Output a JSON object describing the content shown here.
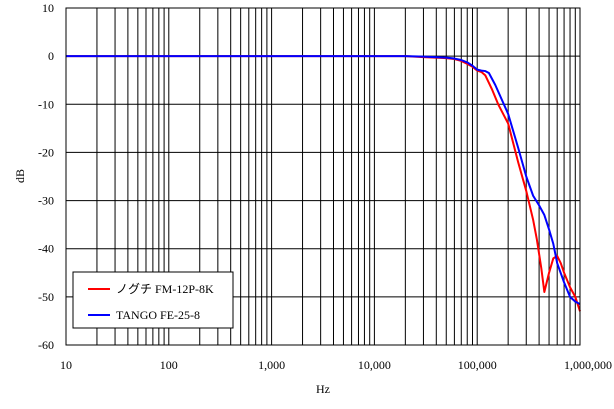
{
  "chart_data": {
    "type": "line",
    "xlabel": "Hz",
    "ylabel": "dB",
    "xscale": "log",
    "xlim": [
      10,
      1000000
    ],
    "ylim": [
      -60,
      10
    ],
    "grid": true,
    "legend_position": "bottom-left",
    "x_ticks": [
      {
        "value": 10,
        "label": "10"
      },
      {
        "value": 100,
        "label": "100"
      },
      {
        "value": 1000,
        "label": "1,000"
      },
      {
        "value": 10000,
        "label": "10,000"
      },
      {
        "value": 100000,
        "label": "100,000"
      },
      {
        "value": 1000000,
        "label": "1,000,000"
      }
    ],
    "y_ticks": [
      {
        "value": 10,
        "label": "10"
      },
      {
        "value": 0,
        "label": "0"
      },
      {
        "value": -10,
        "label": "-10"
      },
      {
        "value": -20,
        "label": "-20"
      },
      {
        "value": -30,
        "label": "-30"
      },
      {
        "value": -40,
        "label": "-40"
      },
      {
        "value": -50,
        "label": "-50"
      },
      {
        "value": -60,
        "label": "-60"
      }
    ],
    "series": [
      {
        "name": "ノグチ FM-12P-8K",
        "color": "#ff0000",
        "points": [
          [
            10,
            0
          ],
          [
            1000,
            0
          ],
          [
            20000,
            0
          ],
          [
            30000,
            -0.2
          ],
          [
            50000,
            -0.4
          ],
          [
            60000,
            -0.6
          ],
          [
            70000,
            -1
          ],
          [
            80000,
            -1.6
          ],
          [
            90000,
            -2.2
          ],
          [
            100000,
            -3
          ],
          [
            110000,
            -3.3
          ],
          [
            120000,
            -4
          ],
          [
            140000,
            -7
          ],
          [
            160000,
            -10
          ],
          [
            200000,
            -14
          ],
          [
            250000,
            -22
          ],
          [
            300000,
            -28
          ],
          [
            350000,
            -34
          ],
          [
            380000,
            -38
          ],
          [
            420000,
            -44
          ],
          [
            450000,
            -49
          ],
          [
            500000,
            -45
          ],
          [
            550000,
            -42
          ],
          [
            600000,
            -41.5
          ],
          [
            650000,
            -43
          ],
          [
            700000,
            -45
          ],
          [
            800000,
            -48
          ],
          [
            900000,
            -50
          ],
          [
            1000000,
            -53
          ]
        ]
      },
      {
        "name": "TANGO FE-25-8",
        "color": "#0000ff",
        "points": [
          [
            10,
            0
          ],
          [
            1000,
            0
          ],
          [
            20000,
            0
          ],
          [
            30000,
            -0.1
          ],
          [
            50000,
            -0.3
          ],
          [
            60000,
            -0.5
          ],
          [
            70000,
            -0.8
          ],
          [
            80000,
            -1.3
          ],
          [
            90000,
            -2
          ],
          [
            100000,
            -2.8
          ],
          [
            110000,
            -3
          ],
          [
            120000,
            -3.1
          ],
          [
            130000,
            -3.5
          ],
          [
            150000,
            -6
          ],
          [
            200000,
            -12
          ],
          [
            250000,
            -19
          ],
          [
            300000,
            -25
          ],
          [
            350000,
            -29
          ],
          [
            400000,
            -31
          ],
          [
            450000,
            -33
          ],
          [
            500000,
            -36
          ],
          [
            550000,
            -39
          ],
          [
            600000,
            -43
          ],
          [
            700000,
            -47
          ],
          [
            800000,
            -50
          ],
          [
            900000,
            -51
          ],
          [
            1000000,
            -51.5
          ]
        ]
      }
    ]
  }
}
